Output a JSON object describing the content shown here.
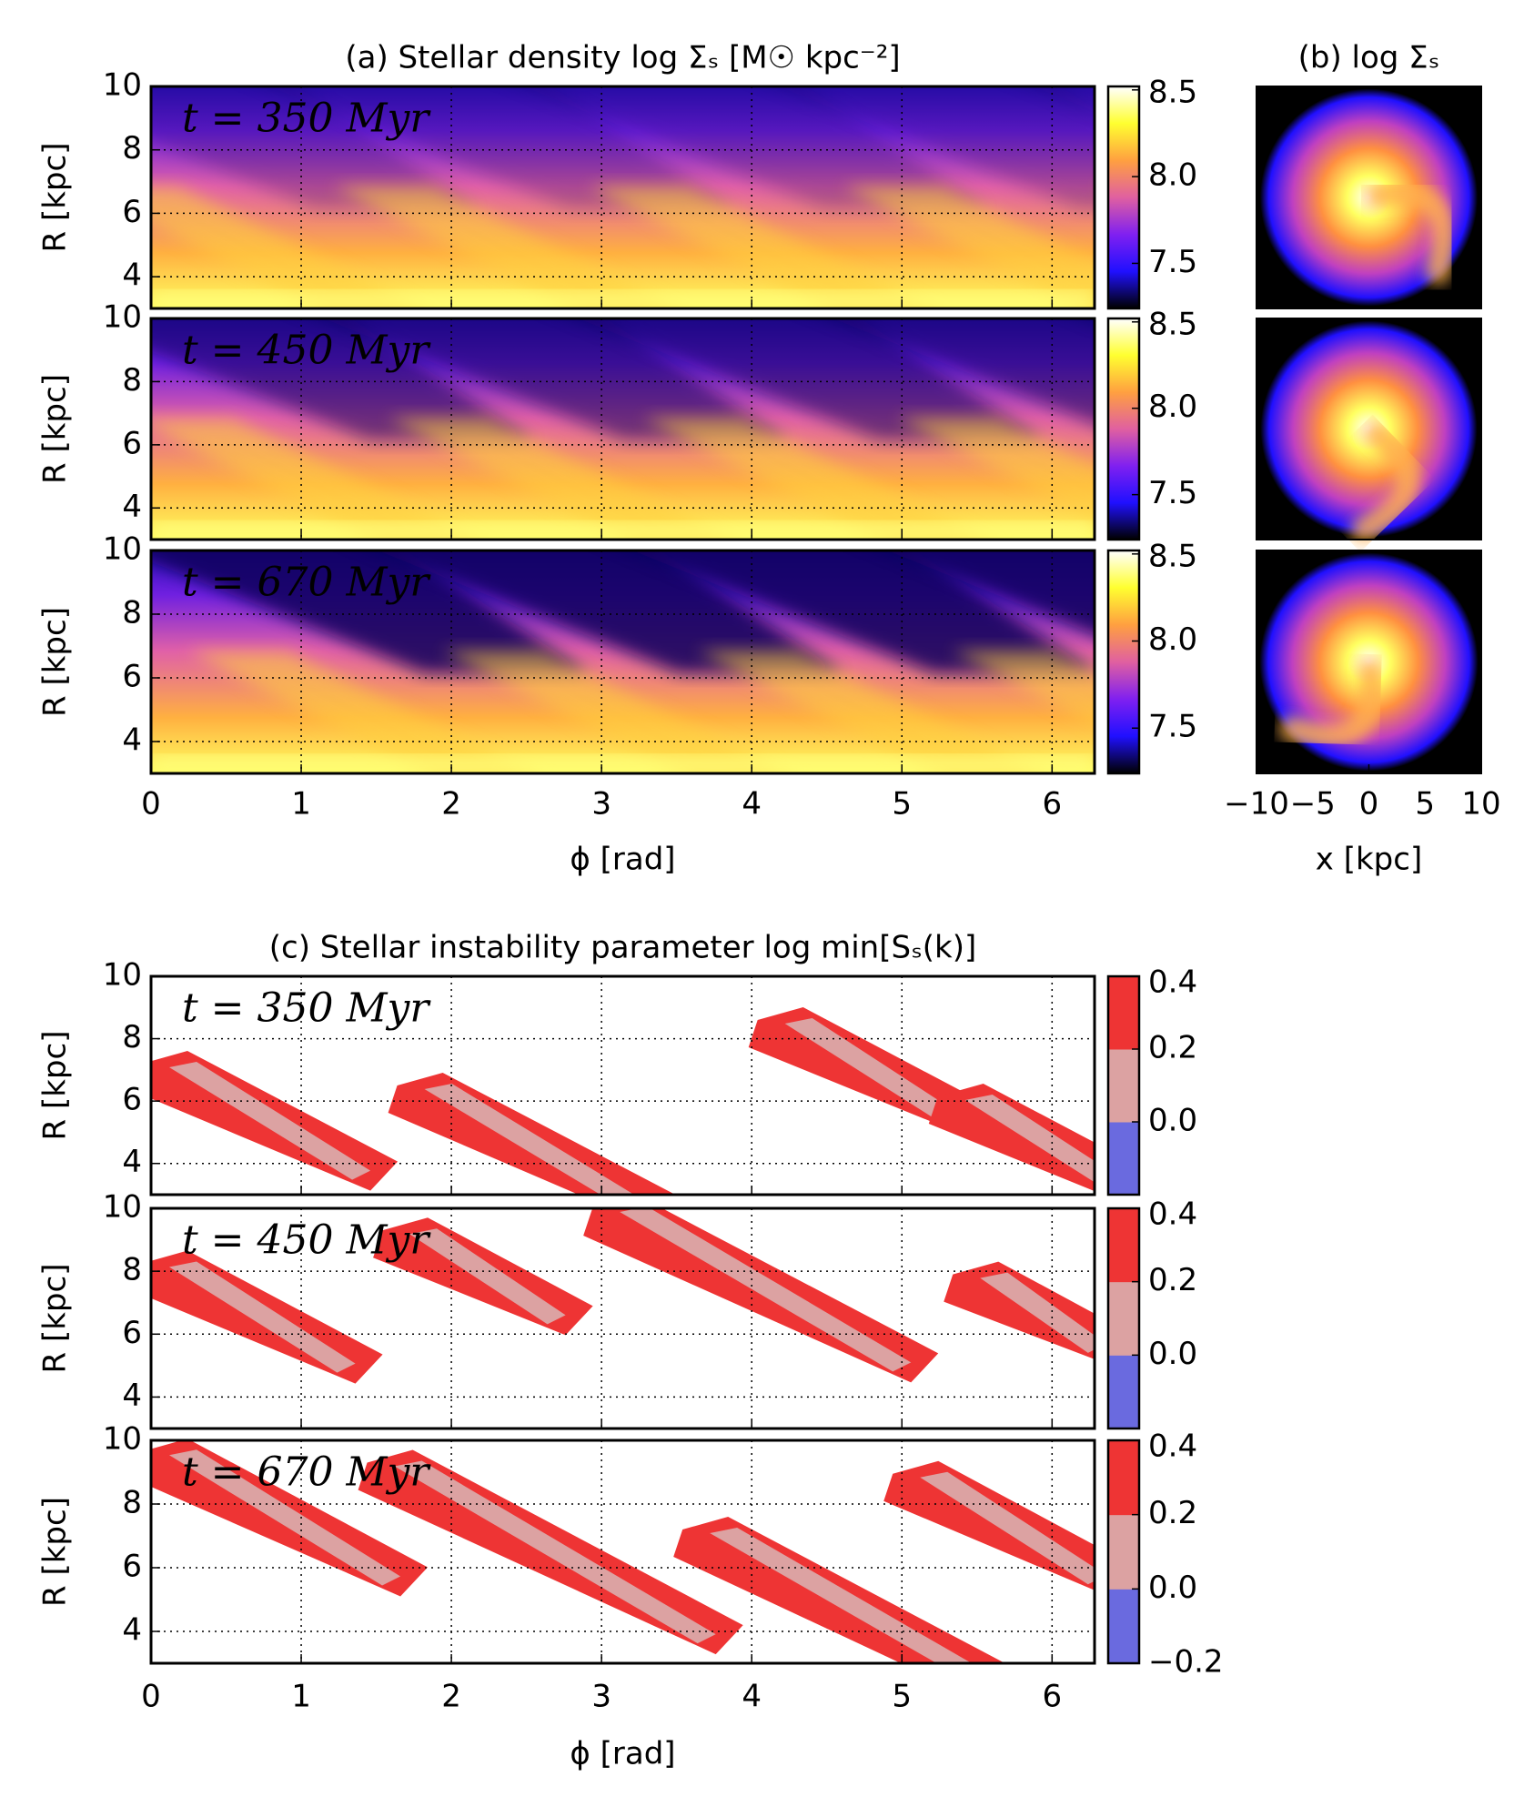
{
  "chart_data": [
    {
      "type": "heatmap",
      "title": "(a) Stellar density log Σₛ [M☉ kpc⁻²]",
      "xlabel": "ϕ [rad]",
      "ylabel": "R [kpc]",
      "xlim": [
        0,
        6.283
      ],
      "xticks": [
        0,
        1,
        2,
        3,
        4,
        5,
        6
      ],
      "ylim": [
        3,
        10
      ],
      "yticks": [
        4,
        6,
        8,
        10
      ],
      "grid": true,
      "panels": [
        {
          "label": "t = 350 Myr"
        },
        {
          "label": "t = 450 Myr"
        },
        {
          "label": "t = 670 Myr"
        }
      ],
      "colorbar": {
        "lim": [
          7.24,
          8.52
        ],
        "ticks": [
          7.5,
          {
            "value": 8,
            "label": "8.0"
          },
          8.5
        ],
        "colors": [
          "#000000",
          "#2010ff",
          "#8020f0",
          "#e060a0",
          "#ffa040",
          "#ffff30",
          "#ffffff"
        ]
      }
    },
    {
      "type": "image",
      "title": "(b) log Σₛ",
      "xlabel": "x [kpc]",
      "xlim": [
        -10,
        10
      ],
      "xticks": [
        {
          "value": -10,
          "label": "−10"
        },
        {
          "value": -5,
          "label": "−5"
        },
        0,
        5,
        10
      ]
    },
    {
      "type": "contour",
      "title": "(c) Stellar instability parameter log min[Sₛ(k)]",
      "xlabel": "ϕ [rad]",
      "ylabel": "R [kpc]",
      "xlim": [
        0,
        6.283
      ],
      "xticks": [
        0,
        1,
        2,
        3,
        4,
        5,
        6
      ],
      "ylim": [
        3,
        10
      ],
      "yticks": [
        4,
        6,
        8,
        10
      ],
      "grid": true,
      "panels": [
        {
          "label": "t = 350 Myr"
        },
        {
          "label": "t = 450 Myr"
        },
        {
          "label": "t = 670 Myr"
        }
      ],
      "colorbar": {
        "lim": [
          -0.2,
          0.4
        ],
        "ticks": [
          {
            "value": -0.2,
            "label": "−0.2"
          },
          {
            "value": 0,
            "label": "0.0"
          },
          {
            "value": 0.2,
            "label": "0.2"
          },
          {
            "value": 0.4,
            "label": "0.4"
          }
        ],
        "colors": [
          "#6a6adf",
          "#dca2a2",
          "#ee3434"
        ]
      }
    }
  ]
}
